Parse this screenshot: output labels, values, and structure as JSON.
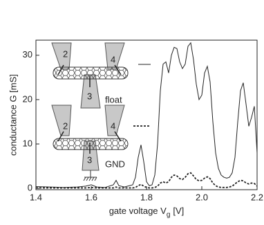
{
  "chart_data": {
    "type": "line",
    "x_label": {
      "main": "gate voltage V",
      "sub": "g",
      "tail": "[V]"
    },
    "y_label": "conductance G [mS]",
    "x": [
      1.4,
      1.45,
      1.5,
      1.55,
      1.58,
      1.6,
      1.62,
      1.65,
      1.68,
      1.69,
      1.7,
      1.72,
      1.75,
      1.76,
      1.77,
      1.78,
      1.79,
      1.8,
      1.81,
      1.82,
      1.83,
      1.84,
      1.85,
      1.86,
      1.87,
      1.88,
      1.89,
      1.9,
      1.91,
      1.92,
      1.93,
      1.94,
      1.95,
      1.96,
      1.97,
      1.98,
      1.99,
      2.0,
      2.01,
      2.02,
      2.03,
      2.04,
      2.05,
      2.06,
      2.07,
      2.08,
      2.09,
      2.1,
      2.11,
      2.12,
      2.13,
      2.14,
      2.15,
      2.16,
      2.17,
      2.18,
      2.19,
      2.2
    ],
    "series": [
      {
        "color": "#222222",
        "dash": "solid",
        "values": [
          0.4,
          0.3,
          0.2,
          0.3,
          0.5,
          0.8,
          0.3,
          0.2,
          0.8,
          1.8,
          0.6,
          0.3,
          0.8,
          2.5,
          7,
          9.8,
          6,
          1.5,
          0.6,
          0.8,
          3,
          10,
          22,
          28,
          28.5,
          26,
          30,
          31.8,
          31.5,
          28.5,
          27,
          28,
          32,
          32.8,
          29,
          23.5,
          20,
          21,
          26,
          27.5,
          24,
          15,
          8,
          4.5,
          3,
          2.5,
          2.3,
          2.5,
          3.5,
          7,
          15,
          22,
          23.8,
          19,
          14,
          16,
          18.5,
          8
        ]
      },
      {
        "color": "#222222",
        "dash": "dashed",
        "values": [
          0.1,
          0.1,
          0.1,
          0.1,
          0.1,
          0.2,
          0.1,
          0.1,
          0.1,
          0.3,
          0.1,
          0.1,
          0.1,
          0.2,
          0.6,
          0.9,
          0.5,
          0.2,
          0.1,
          0.1,
          0.2,
          0.5,
          1.2,
          1.5,
          1.2,
          1.5,
          2.5,
          3,
          2.8,
          2.2,
          2,
          2.5,
          3.3,
          3.5,
          2.8,
          2,
          1.7,
          1.8,
          2.3,
          2.6,
          2.2,
          1.2,
          0.6,
          0.3,
          0.2,
          0.2,
          0.2,
          0.3,
          0.5,
          1,
          1.5,
          1.8,
          1.7,
          1.2,
          1,
          1.2,
          1.1,
          0.5
        ]
      }
    ],
    "xlim": [
      1.4,
      2.2
    ],
    "xticks": [
      1.4,
      1.6,
      1.8,
      {
        "value": 2,
        "label": "2.0"
      },
      2.2
    ],
    "ylim": [
      -0.3,
      33.4
    ],
    "yticks": [
      0,
      10,
      20,
      30
    ],
    "inset_labels": {
      "top": {
        "left": "2",
        "right": "4",
        "bottom": "3",
        "mode": "float"
      },
      "bottom": {
        "left": "2",
        "right": "4",
        "bottom": "3",
        "mode": "GND"
      }
    }
  }
}
